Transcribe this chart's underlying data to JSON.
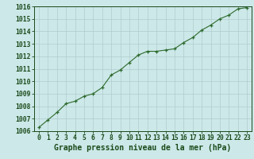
{
  "x": [
    0,
    1,
    2,
    3,
    4,
    5,
    6,
    7,
    8,
    9,
    10,
    11,
    12,
    13,
    14,
    15,
    16,
    17,
    18,
    19,
    20,
    21,
    22,
    23
  ],
  "y": [
    1006.3,
    1006.9,
    1007.5,
    1008.2,
    1008.4,
    1008.8,
    1009.0,
    1009.5,
    1010.5,
    1010.9,
    1011.5,
    1012.1,
    1012.4,
    1012.4,
    1012.5,
    1012.6,
    1013.1,
    1013.5,
    1014.1,
    1014.5,
    1015.0,
    1015.3,
    1015.8,
    1015.9
  ],
  "ylim": [
    1006,
    1016
  ],
  "xlim_min": -0.5,
  "xlim_max": 23.5,
  "yticks": [
    1006,
    1007,
    1008,
    1009,
    1010,
    1011,
    1012,
    1013,
    1014,
    1015,
    1016
  ],
  "xticks": [
    0,
    1,
    2,
    3,
    4,
    5,
    6,
    7,
    8,
    9,
    10,
    11,
    12,
    13,
    14,
    15,
    16,
    17,
    18,
    19,
    20,
    21,
    22,
    23
  ],
  "xlabel": "Graphe pression niveau de la mer (hPa)",
  "line_color": "#2d6a2d",
  "marker": "+",
  "bg_color": "#cce8e8",
  "grid_color": "#b0cccc",
  "text_color": "#1a4a1a",
  "tick_fontsize": 5.8,
  "xlabel_fontsize": 7.0,
  "linewidth": 0.8,
  "markersize": 3.5,
  "markeredgewidth": 0.9
}
